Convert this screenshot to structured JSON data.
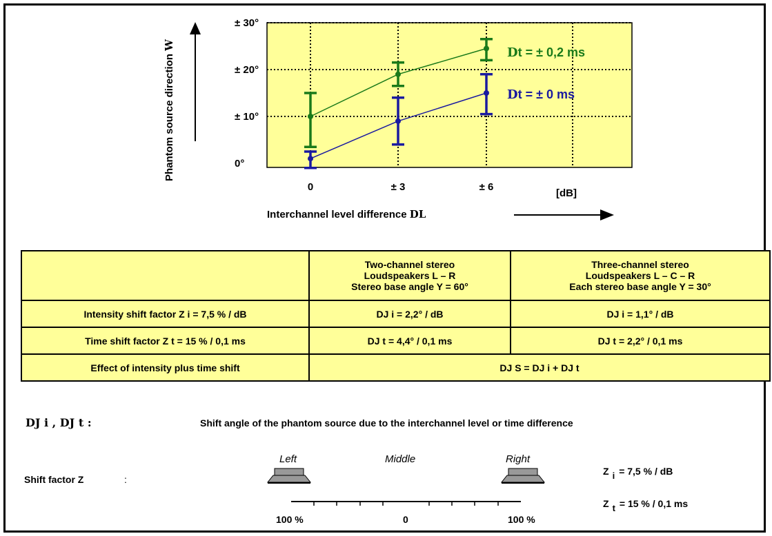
{
  "chart_data": {
    "type": "line",
    "categories": [
      "0",
      "± 3",
      "± 6"
    ],
    "x_unit": "[dB]",
    "xlabel": "Interchannel level difference",
    "xlabel_symbol": "DL",
    "ylabel": "Phantom source direction",
    "ylabel_symbol": "W",
    "yticks": [
      "± 30°",
      "± 20°",
      "± 10°",
      "0°"
    ],
    "ylim": [
      0,
      30
    ],
    "grid": true,
    "series": [
      {
        "name": "Dt = ± 0,2 ms",
        "symbol": "D",
        "label_text": "t = ± 0,2 ms",
        "color": "#1a7a1a",
        "values": [
          10,
          19,
          24.5
        ],
        "err_low": [
          3.5,
          16.5,
          22
        ],
        "err_high": [
          15,
          21.5,
          26.5
        ]
      },
      {
        "name": "Dt = ± 0 ms",
        "symbol": "D",
        "label_text": "t = ± 0 ms",
        "color": "#1a1aa0",
        "values": [
          1,
          9,
          15
        ],
        "err_low": [
          -1,
          4,
          10.5
        ],
        "err_high": [
          2.5,
          14,
          19
        ]
      }
    ]
  },
  "table": {
    "header": [
      "",
      [
        "Two-channel stereo",
        "Loudspeakers L – R",
        "Stereo base angle  Y = 60°"
      ],
      [
        "Three-channel stereo",
        "Loudspeakers L – C – R",
        "Each stereo  base angle  Y = 30°"
      ]
    ],
    "rows": [
      {
        "label": "Intensity shift factor Z  i  = 7,5 % / dB",
        "c1": "DJ i   = 2,2° / dB",
        "c2": "DJ i   = 1,1° / dB"
      },
      {
        "label": "Time shift factor Z  t  = 15 % / 0,1 ms",
        "c1": "DJ t   = 4,4° / 0,1 ms",
        "c2": "DJ t   = 2,2° / 0,1 ms"
      },
      {
        "label": "Effect of intensity plus time shift",
        "c1": "DJ S =  DJ i  +  DJ t"
      }
    ]
  },
  "legend_line": {
    "symbols": "DJ i ,  DJ t :",
    "text": "Shift angle of the phantom source due to the interchannel level or time difference"
  },
  "speakers": {
    "label": "Shift factor Z",
    "colon": ":",
    "left": "Left",
    "middle": "Middle",
    "right": "Right",
    "scale_left": "100 %",
    "scale_mid": "0",
    "scale_right": "100 %",
    "zi": "= 7,5 % / dB",
    "zt": "= 15 % / 0,1 ms",
    "zi_sym": "Z",
    "zi_sub": "i",
    "zt_sym": "Z",
    "zt_sub": "t"
  }
}
